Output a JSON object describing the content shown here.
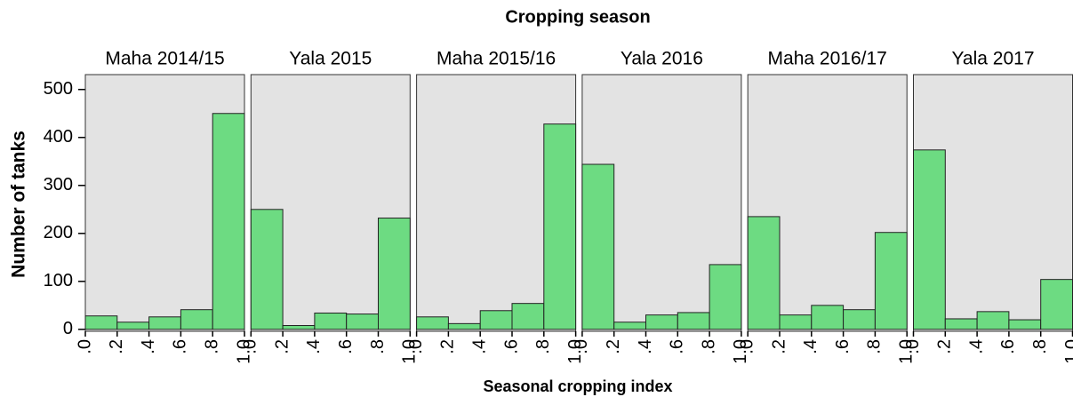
{
  "chart_data": {
    "type": "histogram",
    "title": "Cropping season",
    "xlabel": "Seasonal cropping index",
    "ylabel": "Number of tanks",
    "bins": [
      0,
      0.2,
      0.4,
      0.6,
      0.8,
      1.0
    ],
    "xlim": [
      0,
      1
    ],
    "xticks": [
      {
        "value": 0,
        "label": ".0"
      },
      {
        "value": 0.2,
        "label": ".2"
      },
      {
        "value": 0.4,
        "label": ".4"
      },
      {
        "value": 0.6,
        "label": ".6"
      },
      {
        "value": 0.8,
        "label": ".8"
      },
      {
        "value": 1.0,
        "label": "1.0"
      }
    ],
    "ylim": [
      -4,
      531
    ],
    "yticks": [
      0,
      100,
      200,
      300,
      400,
      500
    ],
    "color": "#6ddb82",
    "series": [
      {
        "name": "Maha 2014/15",
        "values": [
          28,
          15,
          26,
          41,
          450
        ]
      },
      {
        "name": "Yala 2015",
        "values": [
          250,
          8,
          34,
          32,
          232
        ]
      },
      {
        "name": "Maha 2015/16",
        "values": [
          26,
          12,
          39,
          54,
          428
        ]
      },
      {
        "name": "Yala 2016",
        "values": [
          344,
          15,
          30,
          35,
          135
        ]
      },
      {
        "name": "Maha 2016/17",
        "values": [
          235,
          30,
          50,
          41,
          202
        ]
      },
      {
        "name": "Yala 2017",
        "values": [
          374,
          22,
          37,
          20,
          104
        ]
      }
    ]
  }
}
